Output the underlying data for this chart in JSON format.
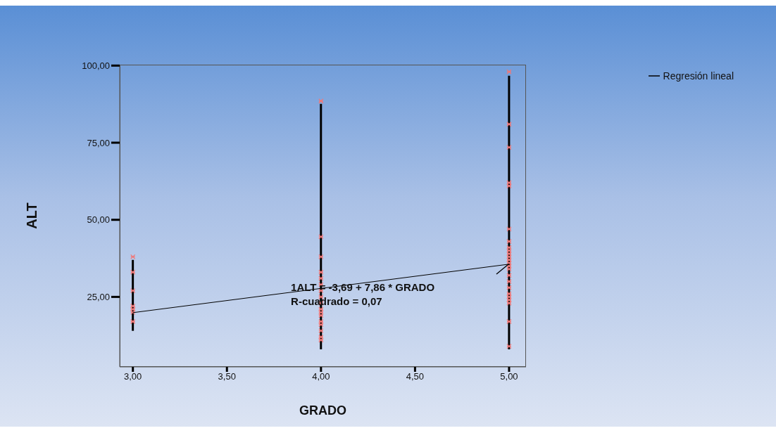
{
  "chart_data": {
    "type": "scatter",
    "xlabel": "GRADO",
    "ylabel": "ALT",
    "xlim": [
      2.93,
      5.09
    ],
    "ylim": [
      2.3,
      100.3
    ],
    "xticks": [
      {
        "value": 3,
        "label": "3,00"
      },
      {
        "value": 3.5,
        "label": "3,50"
      },
      {
        "value": 4,
        "label": "4,00"
      },
      {
        "value": 4.5,
        "label": "4,50"
      },
      {
        "value": 5,
        "label": "5,00"
      }
    ],
    "yticks": [
      {
        "value": 25,
        "label": "25,00"
      },
      {
        "value": 50,
        "label": "50,00"
      },
      {
        "value": 75,
        "label": "75,00"
      },
      {
        "value": 100,
        "label": "100,00"
      }
    ],
    "grid": false,
    "legend": "top right",
    "series": [
      {
        "marker": "cross",
        "color": "#f07878",
        "x": [
          3,
          3,
          3,
          3,
          3,
          3,
          3,
          4,
          4,
          4,
          4,
          4,
          4,
          4,
          4,
          4,
          4,
          4,
          4,
          4,
          4,
          4,
          4,
          4,
          5,
          5,
          5,
          5,
          5,
          5,
          5,
          5,
          5,
          5,
          5,
          5,
          5,
          5,
          5,
          5,
          5,
          5,
          5,
          5,
          5,
          5,
          5,
          5
        ],
        "values": [
          38,
          33,
          27,
          22,
          21,
          20,
          17,
          88.5,
          44.5,
          38,
          33,
          31,
          29,
          27,
          25,
          23,
          21,
          20,
          19,
          17,
          16,
          14,
          12,
          11,
          98,
          81,
          73.5,
          62,
          61,
          47,
          43,
          41,
          40,
          39,
          38,
          37,
          36,
          35,
          34,
          32,
          30,
          28,
          26,
          25,
          24,
          23,
          17,
          9
        ]
      },
      {
        "type": "bar",
        "color": "#000000",
        "x": [
          3,
          4,
          5
        ],
        "base": [
          14,
          8,
          8
        ],
        "values": [
          23,
          79.6,
          88.7
        ]
      },
      {
        "type": "line",
        "name": "Regresión lineal",
        "color": "#000000",
        "x": [
          3,
          5
        ],
        "values": [
          19.89,
          35.61
        ]
      }
    ],
    "annotations": [
      "1ALT = -3,69 + 7,86 * GRADO",
      "R-cuadrado = 0,07"
    ]
  }
}
